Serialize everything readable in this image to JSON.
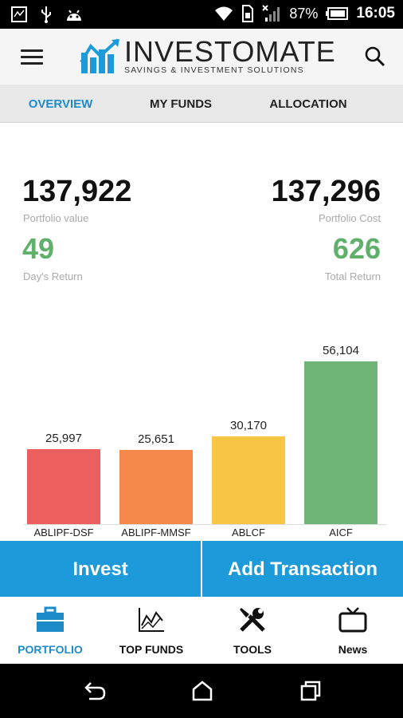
{
  "status_bar": {
    "battery": "87%",
    "time": "16:05"
  },
  "header": {
    "brand_name": "INVESTOMATE",
    "brand_tagline": "SAVINGS & INVESTMENT SOLUTIONS"
  },
  "tabs": [
    {
      "label": "OVERVIEW",
      "active": true
    },
    {
      "label": "MY FUNDS",
      "active": false
    },
    {
      "label": "ALLOCATION",
      "active": false
    }
  ],
  "overview": {
    "portfolio_value": "137,922",
    "portfolio_value_label": "Portfolio value",
    "portfolio_cost": "137,296",
    "portfolio_cost_label": "Portfolio Cost",
    "days_return": "49",
    "days_return_label": "Day's Return",
    "total_return": "626",
    "total_return_label": "Total Return"
  },
  "chart_data": {
    "type": "bar",
    "categories": [
      "ABLIPF-DSF",
      "ABLIPF-MMSF",
      "ABLCF",
      "AICF"
    ],
    "values": [
      25997,
      25651,
      30170,
      56104
    ],
    "value_labels": [
      "25,997",
      "25,651",
      "30,170",
      "56,104"
    ],
    "colors": [
      "#ec5f5f",
      "#f5894c",
      "#f8c545",
      "#70b578"
    ],
    "ylim": [
      0,
      60000
    ],
    "title": "",
    "xlabel": "",
    "ylabel": ""
  },
  "actions": {
    "invest_label": "Invest",
    "add_transaction_label": "Add Transaction"
  },
  "bottom_nav": [
    {
      "label": "PORTFOLIO",
      "icon": "briefcase-icon",
      "active": true
    },
    {
      "label": "TOP FUNDS",
      "icon": "line-chart-icon",
      "active": false
    },
    {
      "label": "TOOLS",
      "icon": "tools-icon",
      "active": false
    },
    {
      "label": "News",
      "icon": "tv-icon",
      "active": false
    }
  ],
  "colors": {
    "accent": "#1e8bc9",
    "button": "#1d9ad9",
    "positive": "#5fb06a"
  }
}
